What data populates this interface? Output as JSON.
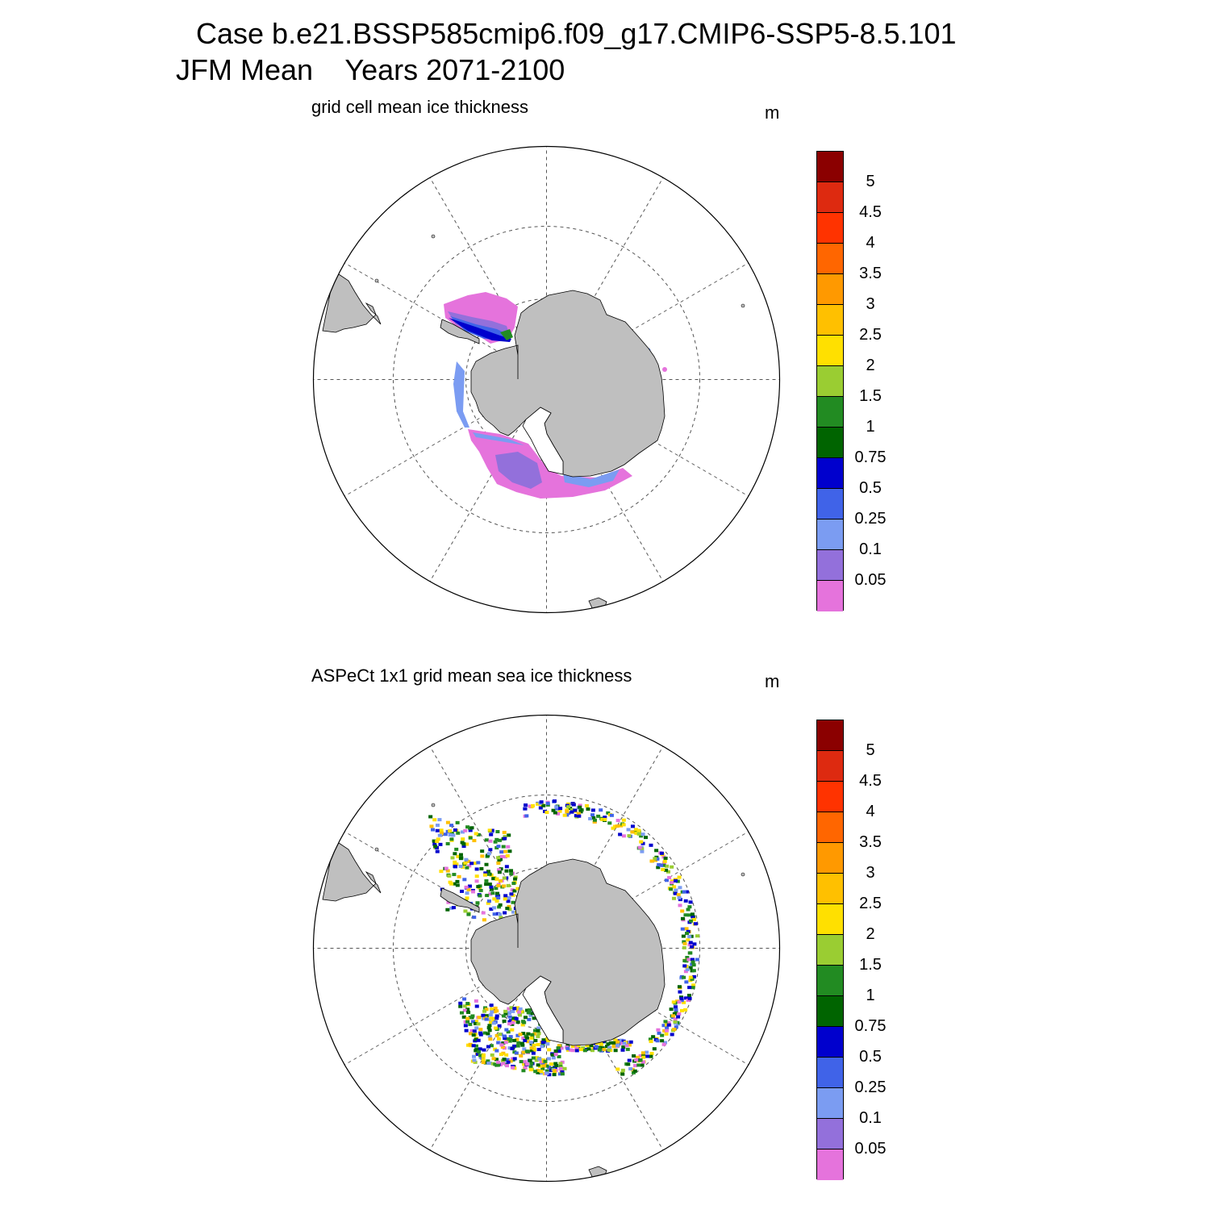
{
  "title": {
    "line1": "Case b.e21.BSSP585cmip6.f09_g17.CMIP6-SSP5-8.5.101",
    "line2": "JFM Mean    Years 2071-2100"
  },
  "panels": [
    {
      "id": "model",
      "subtitle": "grid cell mean ice thickness",
      "units": "m",
      "field_type": "smooth"
    },
    {
      "id": "observations",
      "subtitle": "ASPeCt 1x1 grid mean sea ice thickness",
      "units": "m",
      "field_type": "scattered"
    }
  ],
  "colorbar": {
    "labels": [
      "0.05",
      "0.1",
      "0.25",
      "0.5",
      "0.75",
      "1",
      "1.5",
      "2",
      "2.5",
      "3",
      "3.5",
      "4",
      "4.5",
      "5"
    ],
    "colors": [
      "#e573dc",
      "#9370db",
      "#7b9cf2",
      "#4063e8",
      "#0000cd",
      "#006400",
      "#228b22",
      "#9acd32",
      "#ffe000",
      "#ffc000",
      "#ff9900",
      "#ff6600",
      "#ff3300",
      "#dd2a10",
      "#8b0000"
    ]
  },
  "map": {
    "projection": "south-polar-stereographic",
    "land_color": "#bfbfbf",
    "graticule": "dashed"
  }
}
